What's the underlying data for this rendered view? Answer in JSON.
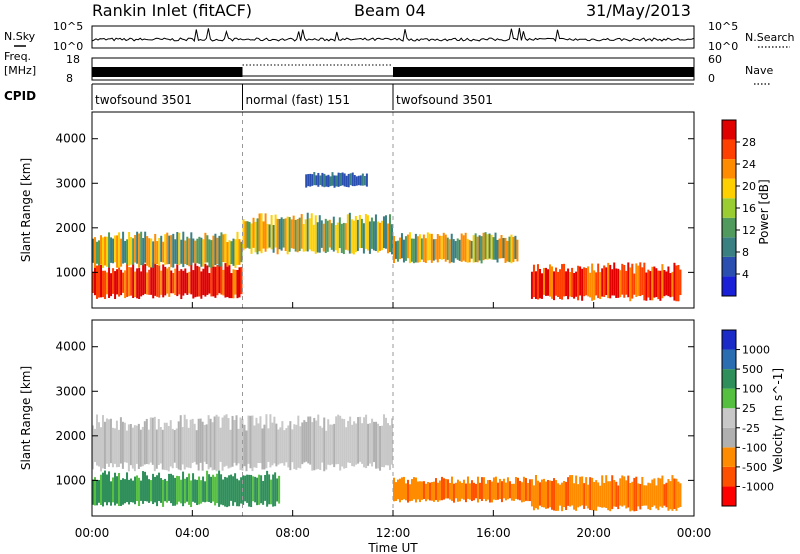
{
  "header": {
    "station": "Rankin Inlet (fitACF)",
    "beam": "Beam 04",
    "date": "31/May/2013"
  },
  "left_labels": {
    "nsky": "N.Sky",
    "freq": "Freq.",
    "freq_unit": "[MHz]",
    "cpid": "CPID"
  },
  "right_labels": {
    "nsearch": "N.Search",
    "nave": "Nave"
  },
  "noise_axis": {
    "left_ticks": [
      "10^5",
      "10^0"
    ],
    "right_ticks": [
      "10^5",
      "10^0"
    ]
  },
  "freq_axis": {
    "left_ticks": [
      "18",
      "8"
    ],
    "right_ticks": [
      "60",
      "0"
    ]
  },
  "cpid_segments": [
    {
      "label": "twofsound 3501",
      "start_hour": 0,
      "end_hour": 6
    },
    {
      "label": "normal (fast) 151",
      "start_hour": 6,
      "end_hour": 12
    },
    {
      "label": "twofsound 3501",
      "start_hour": 12,
      "end_hour": 24
    }
  ],
  "chart_data": [
    {
      "type": "heatmap",
      "panel": "power",
      "ylabel": "Slant Range [km]",
      "ylim": [
        200,
        4600
      ],
      "yticks": [
        1000,
        2000,
        3000,
        4000
      ],
      "xlim": [
        0,
        24
      ],
      "colorbar": {
        "label": "Power [dB]",
        "ticks": [
          "4",
          "8",
          "12",
          "16",
          "20",
          "24",
          "28"
        ]
      },
      "bands": [
        {
          "start_hour": 0,
          "end_hour": 6,
          "range_km": [
            400,
            1100
          ],
          "level": "strong"
        },
        {
          "start_hour": 0,
          "end_hour": 6,
          "range_km": [
            1100,
            1800
          ],
          "level": "medium"
        },
        {
          "start_hour": 6,
          "end_hour": 12,
          "range_km": [
            1400,
            2200
          ],
          "level": "medium"
        },
        {
          "start_hour": 8.5,
          "end_hour": 11,
          "range_km": [
            2900,
            3200
          ],
          "level": "weak"
        },
        {
          "start_hour": 12,
          "end_hour": 17,
          "range_km": [
            1200,
            1800
          ],
          "level": "medium"
        },
        {
          "start_hour": 17.5,
          "end_hour": 23.5,
          "range_km": [
            350,
            1100
          ],
          "level": "strong"
        }
      ]
    },
    {
      "type": "heatmap",
      "panel": "velocity",
      "ylabel": "Slant Range [km]",
      "xlabel": "Time UT",
      "ylim": [
        200,
        4600
      ],
      "yticks": [
        1000,
        2000,
        3000,
        4000
      ],
      "xlim": [
        0,
        24
      ],
      "xticks": [
        "00:00",
        "04:00",
        "08:00",
        "12:00",
        "16:00",
        "20:00",
        "00:00"
      ],
      "colorbar": {
        "label": "Velocity [m s^-1]",
        "ticks": [
          "1000",
          "500",
          "100",
          "25",
          "-25",
          "-100",
          "-500",
          "-1000"
        ]
      },
      "bands": [
        {
          "start_hour": 0,
          "end_hour": 12,
          "range_km": [
            1200,
            2300
          ],
          "level": "ground"
        },
        {
          "start_hour": 0,
          "end_hour": 7.5,
          "range_km": [
            400,
            1100
          ],
          "level": "positive"
        },
        {
          "start_hour": 12,
          "end_hour": 17.5,
          "range_km": [
            500,
            1000
          ],
          "level": "negative"
        },
        {
          "start_hour": 17.5,
          "end_hour": 23.5,
          "range_km": [
            300,
            1000
          ],
          "level": "negative"
        }
      ]
    }
  ],
  "colors": {
    "power_scale": [
      "#1a20d8",
      "#2b4fb0",
      "#3a7f82",
      "#4f9a5c",
      "#9acd32",
      "#ffd000",
      "#ff8c00",
      "#ff4000",
      "#e00000"
    ],
    "velocity_scale": [
      "#ff0000",
      "#ff5000",
      "#ff8c00",
      "#b0b0b0",
      "#c8c8c8",
      "#55c040",
      "#2f8f5a",
      "#2a6db0",
      "#1a2bc8"
    ]
  }
}
